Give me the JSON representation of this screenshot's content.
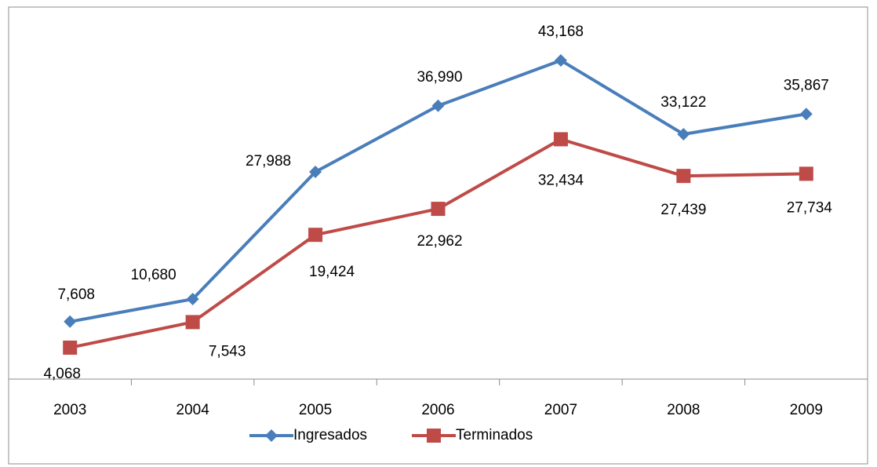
{
  "chart_data": {
    "type": "line",
    "categories": [
      "2003",
      "2004",
      "2005",
      "2006",
      "2007",
      "2008",
      "2009"
    ],
    "series": [
      {
        "name": "Ingresados",
        "color": "#4a7ebb",
        "marker": "diamond",
        "values": [
          7608,
          10680,
          27988,
          36990,
          43168,
          33122,
          35867
        ],
        "value_labels": [
          "7,608",
          "10,680",
          "27,988",
          "36,990",
          "43,168",
          "33,122",
          "35,867"
        ]
      },
      {
        "name": "Terminados",
        "color": "#be4b48",
        "marker": "square",
        "values": [
          4068,
          7543,
          19424,
          22962,
          32434,
          27439,
          27734
        ],
        "value_labels": [
          "4,068",
          "7,543",
          "19,424",
          "22,962",
          "32,434",
          "27,439",
          "27,734"
        ]
      }
    ],
    "ylim": [
      0,
      50000
    ],
    "legend": "bottom"
  }
}
